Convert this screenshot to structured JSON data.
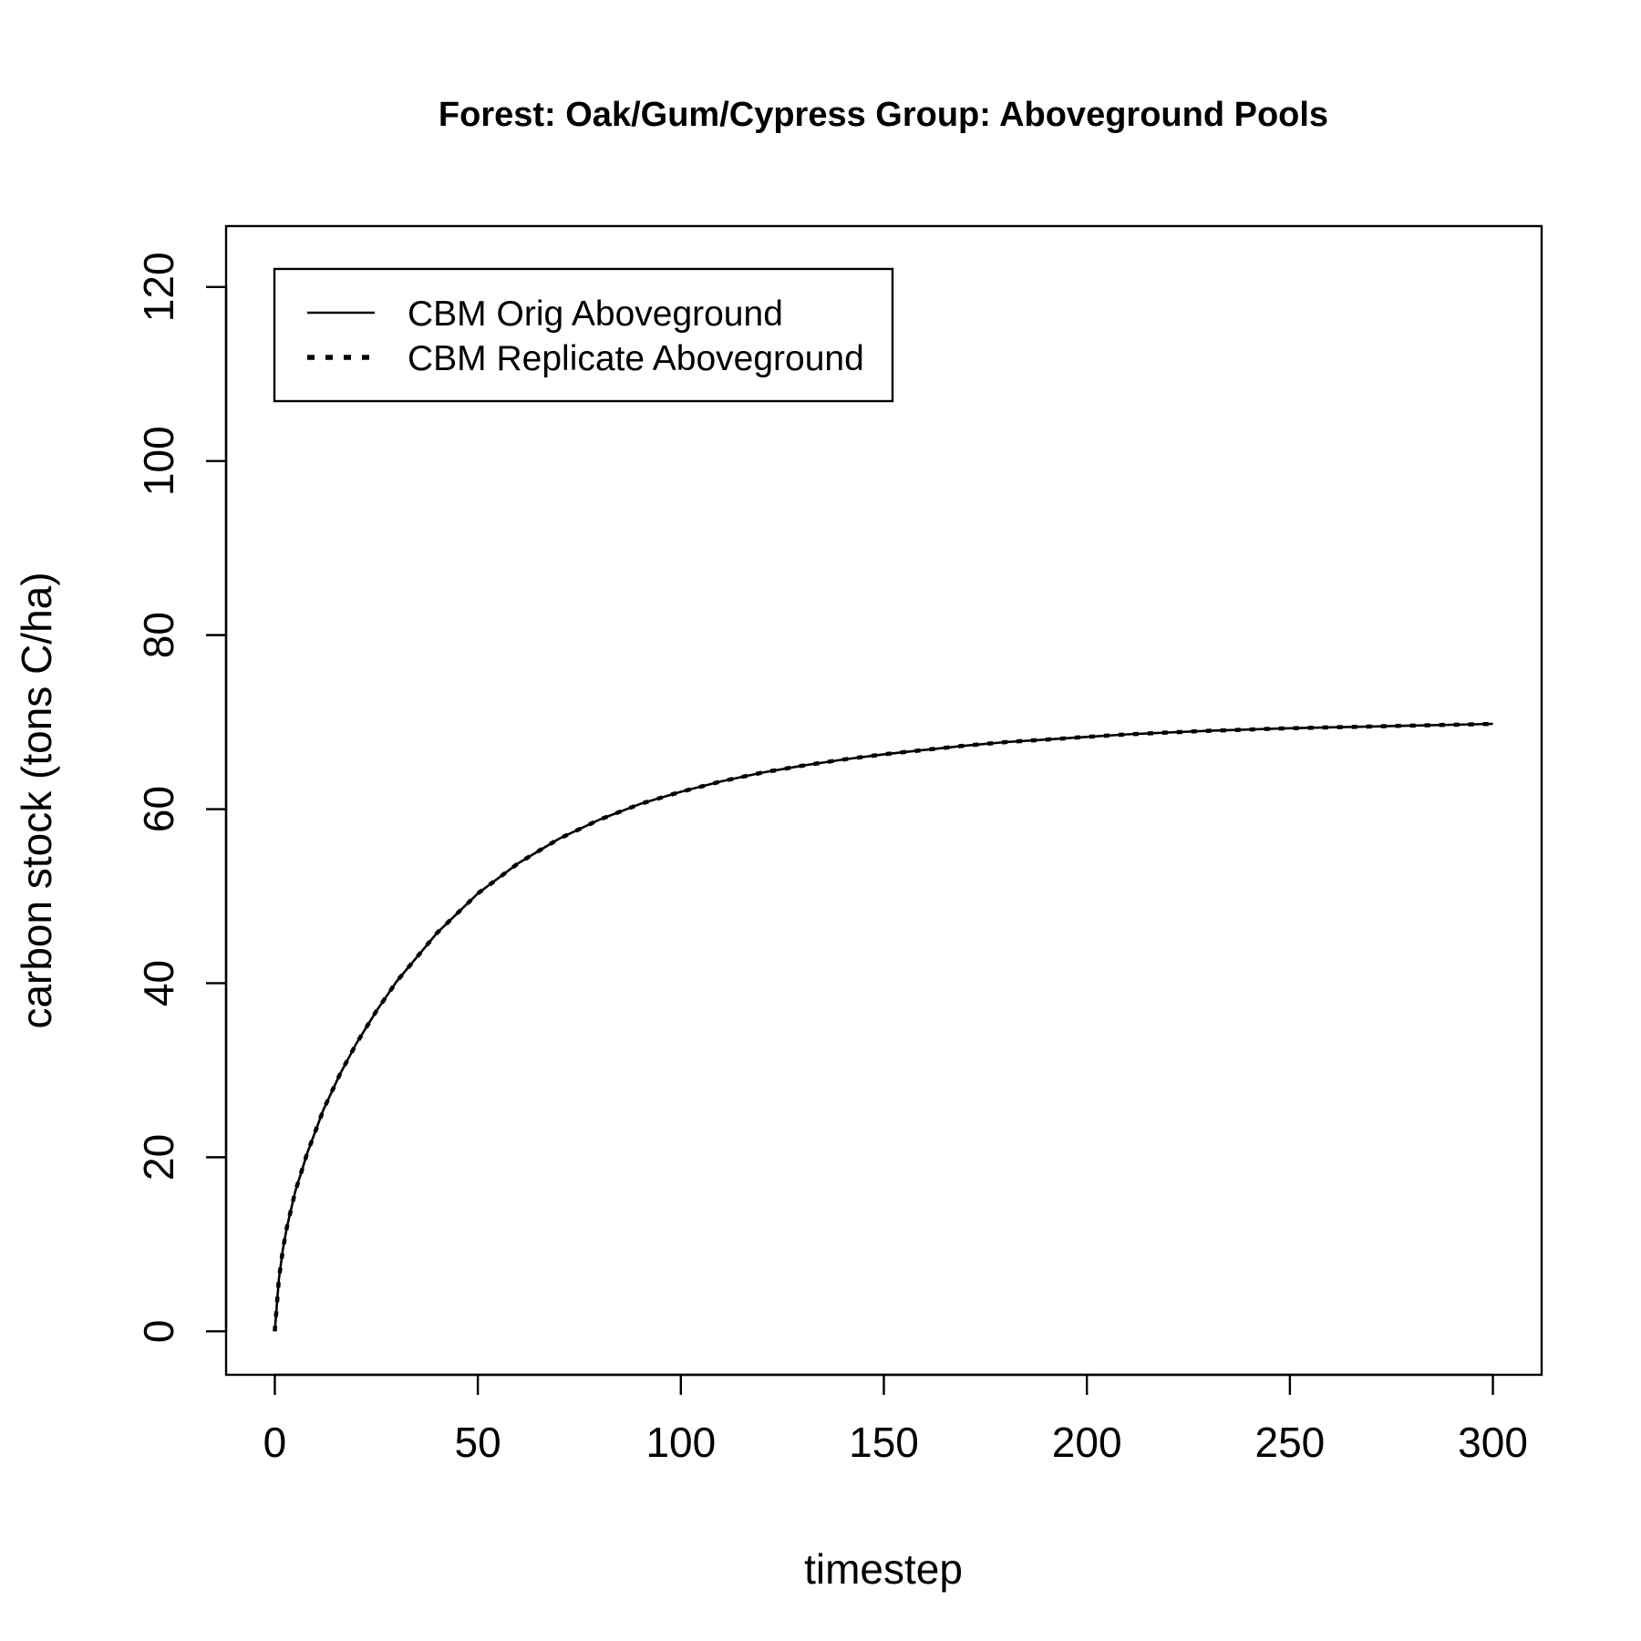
{
  "chart_data": {
    "type": "line",
    "title": "Forest: Oak/Gum/Cypress Group: Aboveground Pools",
    "xlabel": "timestep",
    "ylabel": "carbon stock (tons C/ha)",
    "xlim": [
      -12,
      312
    ],
    "ylim": [
      -5,
      127
    ],
    "x_ticks": [
      0,
      50,
      100,
      150,
      200,
      250,
      300
    ],
    "y_ticks": [
      0,
      20,
      40,
      60,
      80,
      100,
      120
    ],
    "legend_position": "top-left",
    "series": [
      {
        "name": "CBM Orig Aboveground",
        "line_style": "solid",
        "color": "#000000",
        "x": [
          0,
          1,
          2,
          3,
          5,
          8,
          12,
          16,
          20,
          25,
          30,
          40,
          50,
          60,
          70,
          80,
          90,
          100,
          110,
          120,
          130,
          140,
          150,
          160,
          170,
          180,
          190,
          200,
          210,
          220,
          230,
          240,
          250,
          260,
          270,
          280,
          290,
          300
        ],
        "y": [
          0,
          6,
          9.5,
          12,
          16,
          20.5,
          25.5,
          29.5,
          33,
          36.8,
          40.2,
          45.8,
          50.3,
          53.8,
          56.6,
          58.8,
          60.6,
          62,
          63.2,
          64.2,
          65,
          65.7,
          66.3,
          66.8,
          67.3,
          67.7,
          68.0,
          68.3,
          68.6,
          68.8,
          69.0,
          69.15,
          69.3,
          69.4,
          69.5,
          69.6,
          69.7,
          69.8
        ]
      },
      {
        "name": "CBM Replicate Aboveground",
        "line_style": "dashed",
        "color": "#000000",
        "x": [
          0,
          1,
          2,
          3,
          5,
          8,
          12,
          16,
          20,
          25,
          30,
          40,
          50,
          60,
          70,
          80,
          90,
          100,
          110,
          120,
          130,
          140,
          150,
          160,
          170,
          180,
          190,
          200,
          210,
          220,
          230,
          240,
          250,
          260,
          270,
          280,
          290,
          300
        ],
        "y": [
          0,
          6,
          9.5,
          12,
          16,
          20.5,
          25.5,
          29.5,
          33,
          36.8,
          40.2,
          45.8,
          50.3,
          53.8,
          56.6,
          58.8,
          60.6,
          62,
          63.2,
          64.2,
          65,
          65.7,
          66.3,
          66.8,
          67.3,
          67.7,
          68.0,
          68.3,
          68.6,
          68.8,
          69.0,
          69.15,
          69.3,
          69.4,
          69.5,
          69.6,
          69.7,
          69.8
        ]
      }
    ]
  }
}
